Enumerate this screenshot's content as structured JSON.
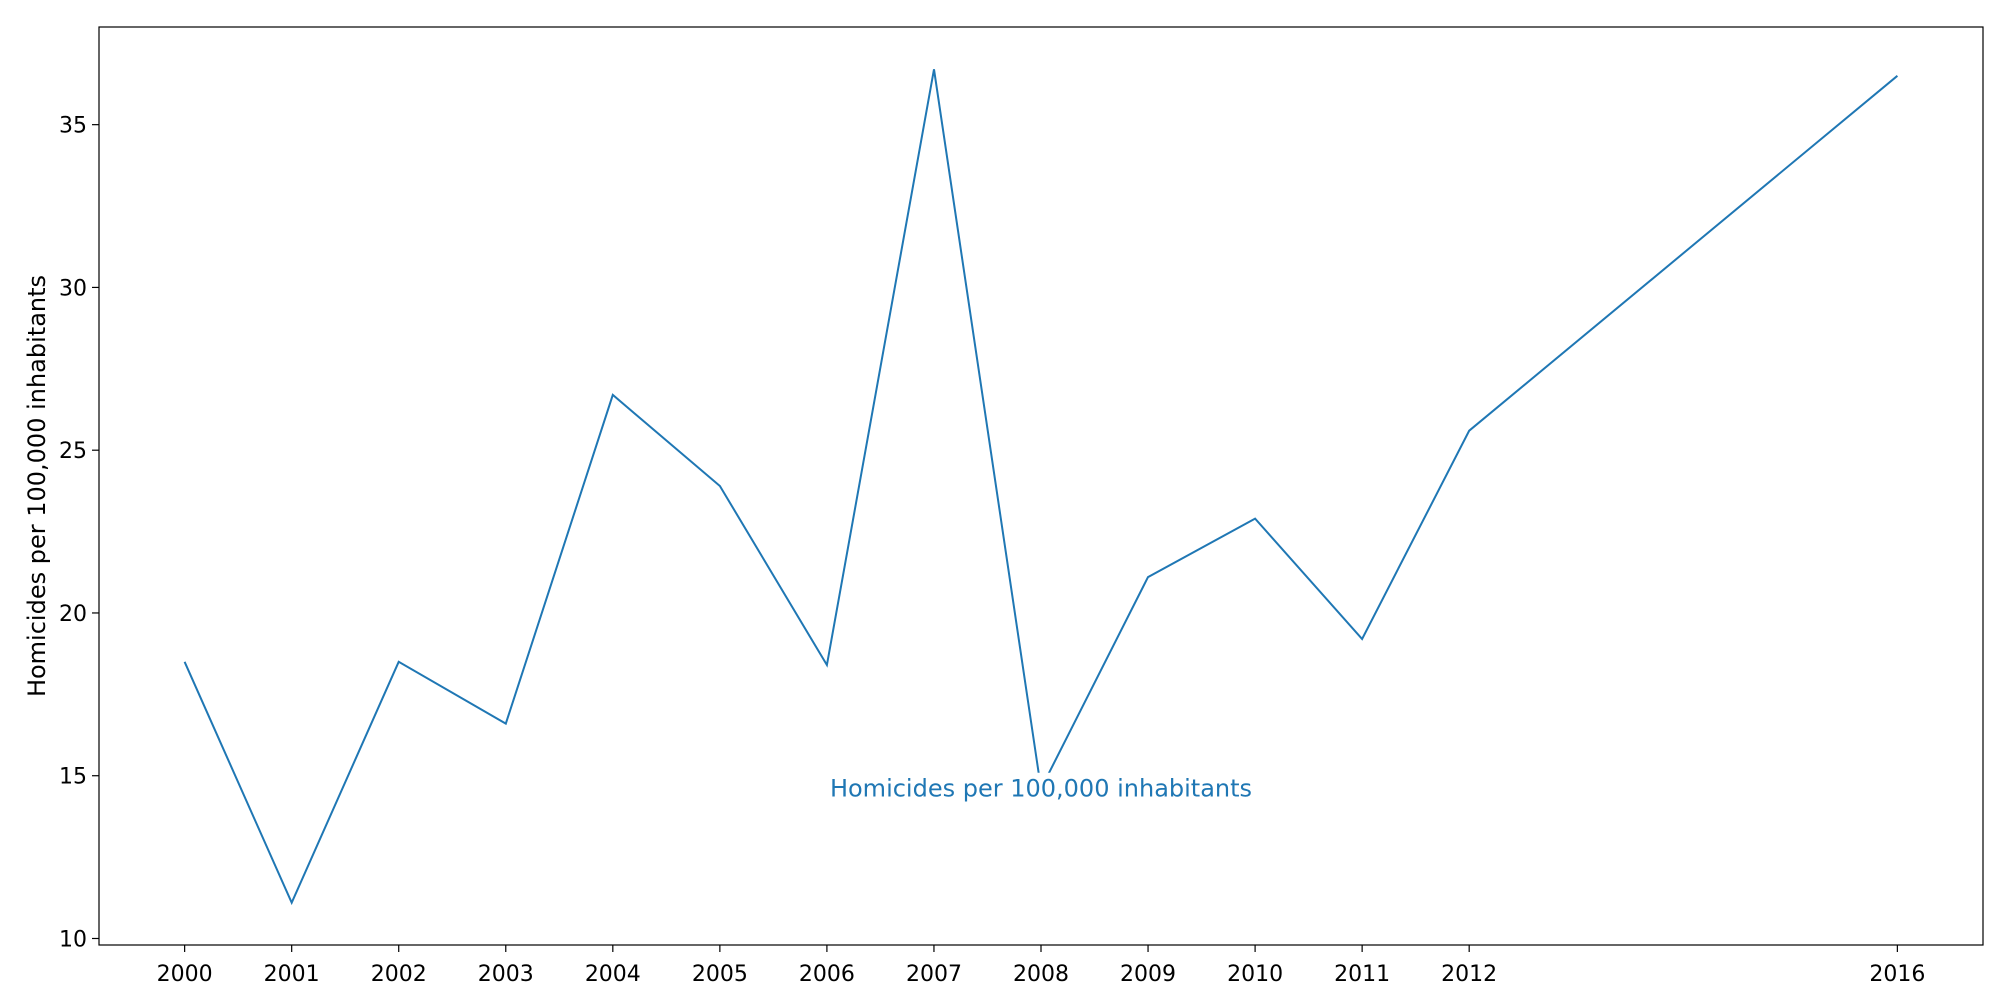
{
  "chart_data": {
    "type": "line",
    "title": "",
    "xlabel": "",
    "ylabel": "Homicides per 100,000 inhabitants",
    "xlim": [
      1999.2,
      2016.8
    ],
    "ylim": [
      9.8,
      38.0
    ],
    "xticks": [
      2000,
      2001,
      2002,
      2003,
      2004,
      2005,
      2006,
      2007,
      2008,
      2009,
      2010,
      2011,
      2012,
      2016
    ],
    "yticks": [
      10,
      15,
      20,
      25,
      30,
      35
    ],
    "grid": false,
    "legend": "none",
    "series": [
      {
        "name": "Homicides per 100,000 inhabitants",
        "color": "#1f77b4",
        "x": [
          2000,
          2001,
          2002,
          2003,
          2004,
          2005,
          2006,
          2007,
          2008,
          2009,
          2010,
          2011,
          2012,
          2016
        ],
        "y": [
          18.5,
          11.1,
          18.5,
          16.6,
          26.7,
          23.9,
          18.4,
          36.7,
          14.6,
          21.1,
          22.9,
          19.2,
          25.6,
          36.5
        ]
      }
    ],
    "annotations": [
      {
        "text": "Homicides per 100,000 inhabitants",
        "x": 2008,
        "y": 14.6,
        "color": "#1f77b4"
      }
    ]
  }
}
